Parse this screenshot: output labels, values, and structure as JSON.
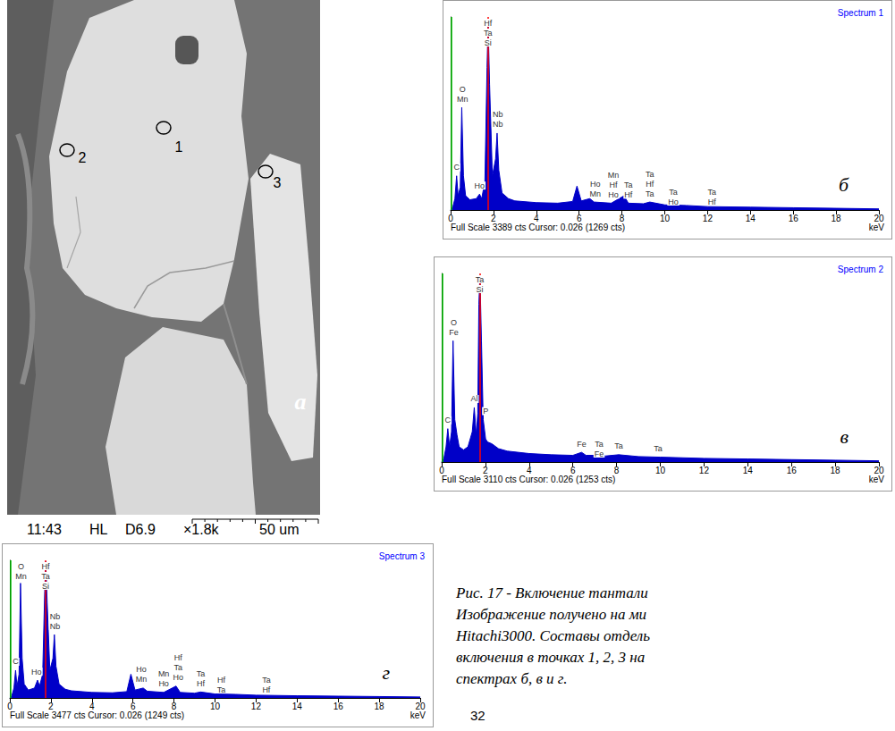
{
  "figure": {
    "image": {
      "label": "а",
      "points": [
        "1",
        "2",
        "3"
      ],
      "info_bar": [
        "11:43",
        "HL",
        "D6.9",
        "×1.8k",
        "50 um"
      ]
    },
    "caption": [
      "Рис. 17 - Включение тантали",
      "Изображение получено на ми",
      "Hitachi3000. Составы отдель",
      "включения в точках 1, 2, 3 на",
      "спектрах б, в и г."
    ],
    "page_number": "32"
  },
  "chart_data": [
    {
      "type": "area",
      "title": "Spectrum 1",
      "label": "б",
      "footer": "Full Scale 3389 cts Cursor: 0.026 (1269 cts)",
      "xlabel": "keV",
      "x": [
        0,
        0.1,
        0.2,
        0.28,
        0.35,
        0.45,
        0.52,
        0.6,
        0.7,
        0.9,
        1.2,
        1.35,
        1.45,
        1.6,
        1.7,
        1.75,
        1.82,
        1.95,
        2.1,
        2.17,
        2.25,
        2.4,
        2.7,
        3,
        4,
        5,
        5.7,
        5.9,
        6.1,
        6.5,
        6.7,
        7.5,
        8.1,
        8.3,
        9,
        9.3,
        10,
        11,
        12,
        14,
        16,
        18,
        20
      ],
      "values": [
        0,
        50,
        200,
        600,
        250,
        400,
        1800,
        600,
        250,
        180,
        200,
        280,
        200,
        500,
        2500,
        3300,
        2200,
        600,
        900,
        1350,
        700,
        300,
        200,
        160,
        130,
        120,
        150,
        420,
        160,
        200,
        140,
        120,
        250,
        120,
        110,
        140,
        90,
        80,
        60,
        50,
        40,
        30,
        20
      ],
      "color": "#0000c8",
      "xlim": [
        0,
        20
      ],
      "xticks": [
        0,
        2,
        4,
        6,
        8,
        10,
        12,
        14,
        16,
        18,
        20
      ],
      "ylim": [
        0,
        3389
      ],
      "tick_labels": "x",
      "grid": false,
      "markers": [
        {
          "x": 0.026,
          "color": "#00c000"
        },
        {
          "x": 1.74,
          "color": "#ff0000"
        }
      ],
      "annotations": [
        {
          "text": "C",
          "x": 0.28
        },
        {
          "text": "O",
          "x": 0.55
        },
        {
          "text": "Mn",
          "x": 0.55
        },
        {
          "text": "Ho",
          "x": 1.35
        },
        {
          "text": "Hf",
          "x": 1.74
        },
        {
          "text": "Ta",
          "x": 1.74
        },
        {
          "text": "Si",
          "x": 1.74
        },
        {
          "text": "Nb",
          "x": 2.2
        },
        {
          "text": "Nb",
          "x": 2.2
        },
        {
          "text": "Ho",
          "x": 6.75
        },
        {
          "text": "Mn",
          "x": 6.75
        },
        {
          "text": "Mn",
          "x": 7.6
        },
        {
          "text": "Hf",
          "x": 7.6
        },
        {
          "text": "Ho",
          "x": 7.6
        },
        {
          "text": "Ta",
          "x": 8.3
        },
        {
          "text": "Hf",
          "x": 8.3
        },
        {
          "text": "Ta",
          "x": 9.3
        },
        {
          "text": "Hf",
          "x": 9.3
        },
        {
          "text": "Ta",
          "x": 9.3
        },
        {
          "text": "Ta",
          "x": 10.4
        },
        {
          "text": "Ho",
          "x": 10.4
        },
        {
          "text": "Ta",
          "x": 12.2
        },
        {
          "text": "Hf",
          "x": 12.2
        }
      ]
    },
    {
      "type": "area",
      "title": "Spectrum 2",
      "label": "в",
      "footer": "Full Scale 3110 cts Cursor: 0.026 (1253 cts)",
      "xlabel": "keV",
      "x": [
        0,
        0.1,
        0.2,
        0.28,
        0.36,
        0.45,
        0.52,
        0.6,
        0.7,
        0.8,
        1.0,
        1.2,
        1.4,
        1.49,
        1.58,
        1.65,
        1.7,
        1.75,
        1.82,
        1.9,
        2.01,
        2.1,
        2.3,
        2.6,
        3,
        4,
        5,
        6,
        6.4,
        6.6,
        7,
        7.5,
        8.1,
        9,
        10,
        12,
        14,
        16,
        18,
        20
      ],
      "values": [
        0,
        60,
        250,
        550,
        250,
        500,
        2000,
        700,
        450,
        250,
        200,
        250,
        500,
        900,
        450,
        800,
        2600,
        3080,
        2000,
        700,
        380,
        330,
        300,
        220,
        180,
        140,
        120,
        110,
        160,
        110,
        110,
        100,
        120,
        90,
        80,
        60,
        50,
        40,
        30,
        20
      ],
      "color": "#0000c8",
      "xlim": [
        0,
        20
      ],
      "xticks": [
        0,
        2,
        4,
        6,
        8,
        10,
        12,
        14,
        16,
        18,
        20
      ],
      "ylim": [
        0,
        3110
      ],
      "tick_labels": "x",
      "grid": false,
      "markers": [
        {
          "x": 0.026,
          "color": "#00c000"
        },
        {
          "x": 1.74,
          "color": "#ff0000"
        }
      ],
      "annotations": [
        {
          "text": "C",
          "x": 0.28
        },
        {
          "text": "O",
          "x": 0.55
        },
        {
          "text": "Fe",
          "x": 0.55
        },
        {
          "text": "Al",
          "x": 1.49
        },
        {
          "text": "Ta",
          "x": 1.74
        },
        {
          "text": "Si",
          "x": 1.74
        },
        {
          "text": "P",
          "x": 2.01
        },
        {
          "text": "Fe",
          "x": 6.4
        },
        {
          "text": "Ta",
          "x": 7.2
        },
        {
          "text": "Fe",
          "x": 7.2
        },
        {
          "text": "Ta",
          "x": 8.1
        },
        {
          "text": "Ta",
          "x": 9.9
        }
      ]
    },
    {
      "type": "area",
      "title": "Spectrum 3",
      "label": "г",
      "footer": "Full Scale 3477 cts Cursor: 0.026 (1249 cts)",
      "xlabel": "keV",
      "x": [
        0,
        0.1,
        0.2,
        0.28,
        0.35,
        0.45,
        0.52,
        0.6,
        0.7,
        0.9,
        1.2,
        1.35,
        1.45,
        1.6,
        1.7,
        1.75,
        1.82,
        1.95,
        2.1,
        2.17,
        2.25,
        2.4,
        2.7,
        3,
        4,
        5,
        5.7,
        5.9,
        6.1,
        6.5,
        6.7,
        7.5,
        8.1,
        8.3,
        9,
        9.3,
        10,
        11,
        12,
        14,
        16,
        18,
        20
      ],
      "values": [
        0,
        60,
        250,
        700,
        300,
        600,
        2900,
        1000,
        350,
        200,
        250,
        450,
        300,
        600,
        2700,
        3450,
        2400,
        700,
        1000,
        1600,
        800,
        350,
        220,
        180,
        140,
        130,
        160,
        600,
        200,
        250,
        170,
        140,
        300,
        140,
        120,
        150,
        100,
        90,
        70,
        55,
        45,
        35,
        25
      ],
      "color": "#0000c8",
      "xlim": [
        0,
        20
      ],
      "xticks": [
        0,
        2,
        4,
        6,
        8,
        10,
        12,
        14,
        16,
        18,
        20
      ],
      "ylim": [
        0,
        3477
      ],
      "tick_labels": "x",
      "grid": false,
      "markers": [
        {
          "x": 0.026,
          "color": "#00c000"
        },
        {
          "x": 1.74,
          "color": "#ff0000"
        }
      ],
      "annotations": [
        {
          "text": "C",
          "x": 0.28
        },
        {
          "text": "O",
          "x": 0.55
        },
        {
          "text": "Mn",
          "x": 0.55
        },
        {
          "text": "Ho",
          "x": 1.3
        },
        {
          "text": "Hf",
          "x": 1.74
        },
        {
          "text": "Ta",
          "x": 1.74
        },
        {
          "text": "Si",
          "x": 1.74
        },
        {
          "text": "Nb",
          "x": 2.2
        },
        {
          "text": "Nb",
          "x": 2.2
        },
        {
          "text": "Ho",
          "x": 6.4
        },
        {
          "text": "Mn",
          "x": 6.4
        },
        {
          "text": "Mn",
          "x": 7.5
        },
        {
          "text": "Ho",
          "x": 7.5
        },
        {
          "text": "Hf",
          "x": 8.2
        },
        {
          "text": "Ta",
          "x": 8.2
        },
        {
          "text": "Ho",
          "x": 8.2
        },
        {
          "text": "Ta",
          "x": 9.3
        },
        {
          "text": "Hf",
          "x": 9.3
        },
        {
          "text": "Hf",
          "x": 10.3
        },
        {
          "text": "Ta",
          "x": 10.3
        },
        {
          "text": "Ta",
          "x": 12.5
        },
        {
          "text": "Hf",
          "x": 12.5
        }
      ]
    }
  ]
}
